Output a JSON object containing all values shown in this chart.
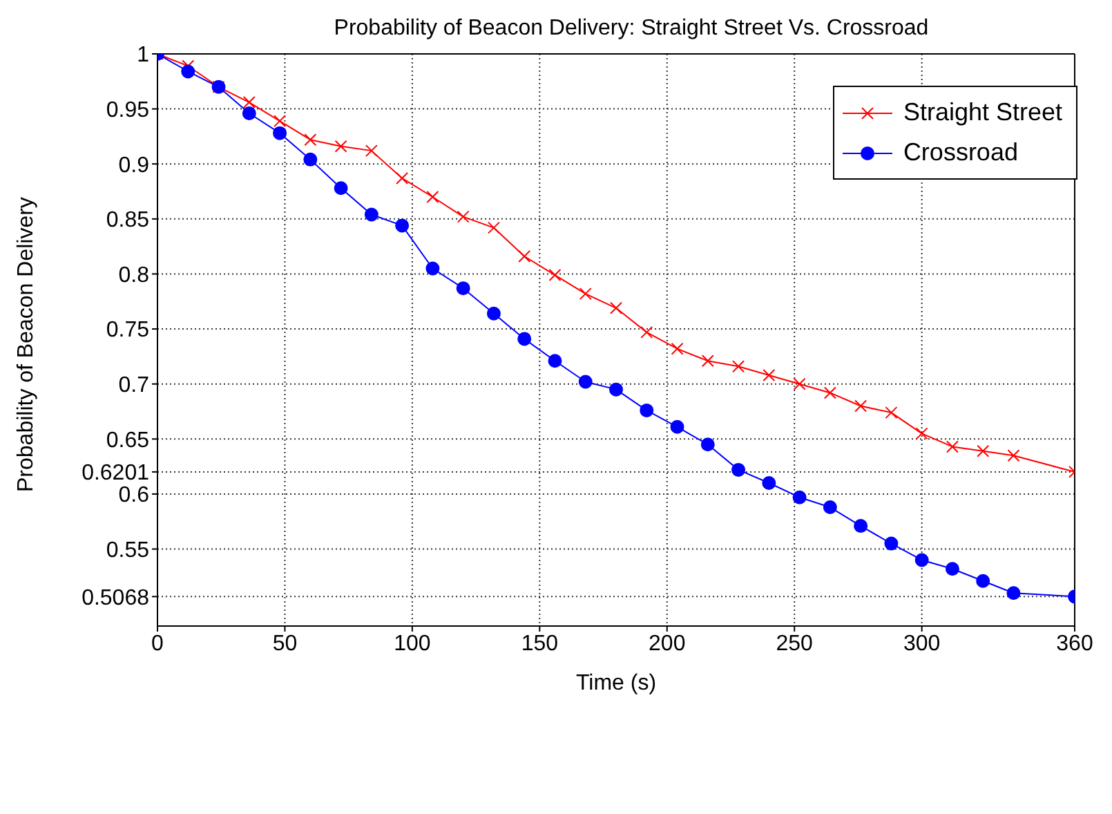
{
  "chart_data": {
    "type": "line",
    "title": "Probability of Beacon Delivery: Straight Street Vs. Crossroad",
    "xlabel": "Time (s)",
    "ylabel": "Probability of Beacon Delivery",
    "x": [
      0,
      12,
      24,
      36,
      48,
      60,
      72,
      84,
      96,
      108,
      120,
      132,
      144,
      156,
      168,
      180,
      192,
      204,
      216,
      228,
      240,
      252,
      264,
      276,
      288,
      300,
      312,
      324,
      336,
      360
    ],
    "series": [
      {
        "name": "Straight Street",
        "color": "#ff0000",
        "marker": "cross",
        "values": [
          1,
          0.989,
          0.97,
          0.956,
          0.939,
          0.922,
          0.916,
          0.912,
          0.887,
          0.87,
          0.852,
          0.842,
          0.816,
          0.799,
          0.782,
          0.769,
          0.747,
          0.732,
          0.721,
          0.716,
          0.708,
          0.7,
          0.692,
          0.68,
          0.674,
          0.655,
          0.643,
          0.639,
          0.635,
          0.6201
        ]
      },
      {
        "name": "Crossroad",
        "color": "#0000ff",
        "marker": "circle",
        "values": [
          1,
          0.984,
          0.97,
          0.946,
          0.928,
          0.904,
          0.878,
          0.854,
          0.844,
          0.805,
          0.787,
          0.764,
          0.741,
          0.721,
          0.702,
          0.695,
          0.676,
          0.661,
          0.645,
          0.622,
          0.61,
          0.597,
          0.588,
          0.571,
          0.555,
          0.54,
          0.532,
          0.521,
          0.51,
          0.5068
        ]
      }
    ],
    "xlim": [
      0,
      360
    ],
    "xticks": [
      0,
      50,
      100,
      150,
      200,
      250,
      300,
      360
    ],
    "ylim": [
      0.48,
      1
    ],
    "yticks": [
      0.5068,
      0.55,
      0.6,
      0.6201,
      0.65,
      0.7,
      0.75,
      0.8,
      0.85,
      0.9,
      0.95,
      1
    ],
    "grid": true,
    "legend": "top right",
    "line_style": "solid"
  }
}
